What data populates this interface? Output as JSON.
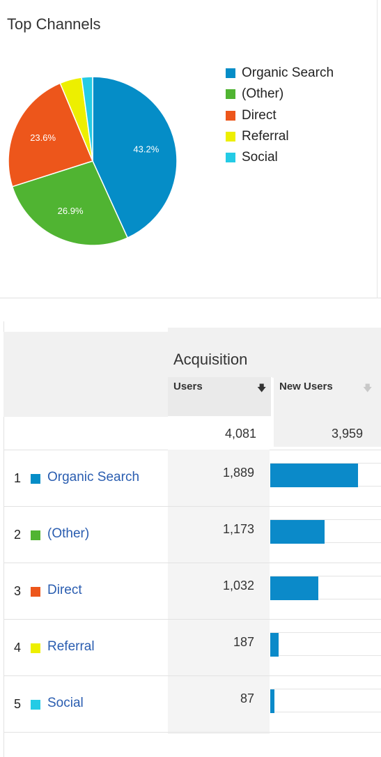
{
  "top_channels": {
    "title": "Top Channels",
    "chart_data": {
      "type": "pie",
      "slices": [
        {
          "label": "Organic Search",
          "value": 43.2,
          "value_label": "43.2%",
          "color": "#058dc7"
        },
        {
          "label": "(Other)",
          "value": 26.9,
          "value_label": "26.9%",
          "color": "#50b432"
        },
        {
          "label": "Direct",
          "value": 23.6,
          "value_label": "23.6%",
          "color": "#ed561b"
        },
        {
          "label": "Referral",
          "value": 4.2,
          "value_label": "",
          "color": "#edef00"
        },
        {
          "label": "Social",
          "value": 2.1,
          "value_label": "",
          "color": "#24cbe5"
        }
      ],
      "legend_position": "right"
    }
  },
  "acquisition": {
    "title": "Acquisition",
    "columns": {
      "users": {
        "label": "Users",
        "sort_icon": "arrow-down-icon",
        "active": true
      },
      "new_users": {
        "label": "New Users",
        "sort_icon": "arrow-down-icon",
        "active": false
      }
    },
    "totals": {
      "users": "4,081",
      "new_users": "3,959"
    },
    "rows": [
      {
        "index": "1",
        "channel": "Organic Search",
        "color": "#058dc7",
        "users": "1,889",
        "users_value": 1889
      },
      {
        "index": "2",
        "channel": "(Other)",
        "color": "#50b432",
        "users": "1,173",
        "users_value": 1173
      },
      {
        "index": "3",
        "channel": "Direct",
        "color": "#ed561b",
        "users": "1,032",
        "users_value": 1032
      },
      {
        "index": "4",
        "channel": "Referral",
        "color": "#edef00",
        "users": "187",
        "users_value": 187
      },
      {
        "index": "5",
        "channel": "Social",
        "color": "#24cbe5",
        "users": "87",
        "users_value": 87
      }
    ]
  }
}
